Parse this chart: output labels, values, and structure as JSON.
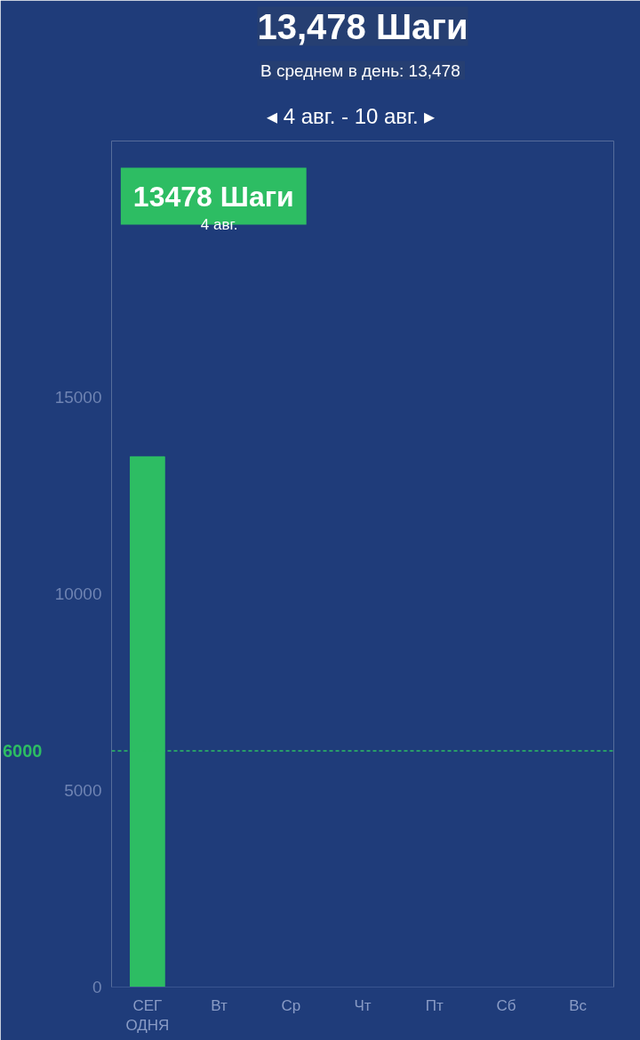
{
  "chart_data": {
    "type": "bar",
    "title": "13,478 Шаги",
    "subtitle": "В среднем в день:  13,478",
    "categories": [
      "СЕГ\nОДНЯ",
      "Вт",
      "Ср",
      "Чт",
      "Пт",
      "Сб",
      "Вс"
    ],
    "values": [
      13478,
      null,
      null,
      null,
      null,
      null,
      null
    ],
    "color": "#2dbd63",
    "ylim": [
      0,
      21500
    ],
    "yticks": [
      0,
      5000,
      10000,
      15000
    ],
    "grid": false,
    "ref_lines": [
      {
        "axis": "y",
        "value": 6000,
        "label": "6000",
        "color": "#2dbd63",
        "line_style": "dashed"
      }
    ],
    "annotations": [
      "◂   4 авг. - 10 авг.   ▸",
      "13478 Шаги",
      "4 авг."
    ]
  }
}
